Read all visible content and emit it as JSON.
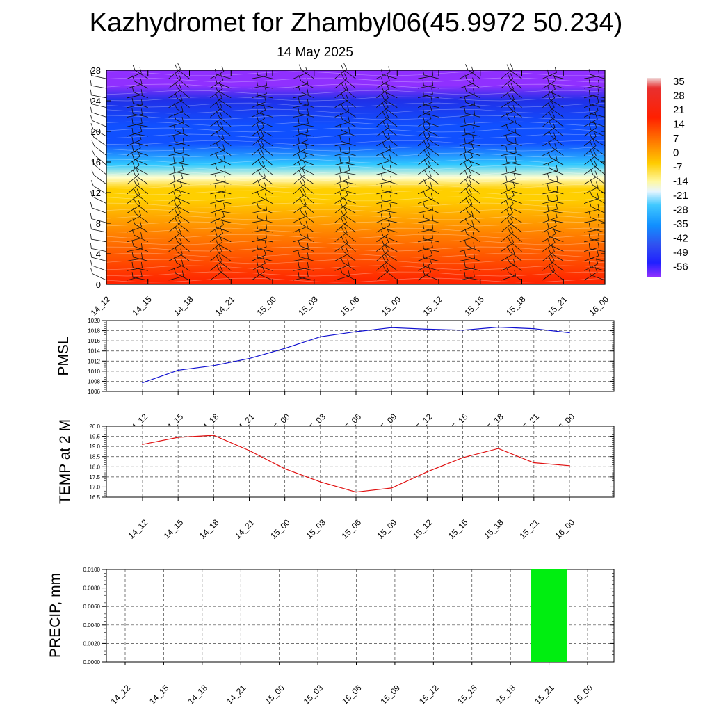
{
  "header": {
    "title": "Kazhydromet for Zhambyl06(45.9972 50.234)",
    "subtitle": "14 May 2025"
  },
  "chart_data": [
    {
      "type": "heatmap",
      "panel": "temperature-height cross section with wind barbs",
      "x": [
        "14_12",
        "14_15",
        "14_18",
        "14_21",
        "15_00",
        "15_03",
        "15_06",
        "15_09",
        "15_12",
        "15_15",
        "15_18",
        "15_21",
        "16_00"
      ],
      "y_ticks": [
        "0",
        "4",
        "8",
        "12",
        "16",
        "20",
        "24",
        "28"
      ],
      "ylim": [
        0,
        28
      ],
      "colorbar": {
        "labels": [
          "35",
          "28",
          "21",
          "14",
          "7",
          "0",
          "-7",
          "-14",
          "-21",
          "-28",
          "-35",
          "-42",
          "-49",
          "-56"
        ],
        "range": [
          -63,
          42
        ]
      },
      "colors": {
        "warm_low": "#ff2000",
        "warm_mid": "#ff7a00",
        "warm_high": "#ffcf00",
        "pale": "#ffffd0",
        "cold_light": "#30c8ff",
        "cold_mid": "#1050ff",
        "cold_deep": "#2030e8",
        "top": "#9030ff"
      }
    },
    {
      "type": "line",
      "ylabel": "PMSL",
      "x": [
        "14_12",
        "14_15",
        "14_18",
        "14_21",
        "15_00",
        "15_03",
        "15_06",
        "15_09",
        "15_12",
        "15_15",
        "15_18",
        "15_21",
        "16_00"
      ],
      "y_ticks": [
        "1006",
        "1008",
        "1010",
        "1012",
        "1014",
        "1016",
        "1018",
        "1020"
      ],
      "ylim": [
        1006,
        1020
      ],
      "series": [
        {
          "values": [
            1007.7,
            1010.2,
            1011.1,
            1012.5,
            1014.5,
            1016.8,
            1017.8,
            1018.6,
            1018.3,
            1018.1,
            1018.7,
            1018.4,
            1017.6
          ]
        }
      ],
      "color": "#1010d0",
      "grid": true
    },
    {
      "type": "line",
      "ylabel": "TEMP at 2 M",
      "x": [
        "14_12",
        "14_15",
        "14_18",
        "14_21",
        "15_00",
        "15_03",
        "15_06",
        "15_09",
        "15_12",
        "15_15",
        "15_18",
        "15_21",
        "16_00"
      ],
      "y_ticks": [
        "16.5",
        "17.0",
        "17.5",
        "18.0",
        "18.5",
        "19.0",
        "19.5",
        "20.0"
      ],
      "ylim": [
        16.5,
        20.0
      ],
      "series": [
        {
          "values": [
            19.1,
            19.45,
            19.55,
            18.8,
            17.9,
            17.25,
            16.75,
            16.95,
            17.75,
            18.45,
            18.9,
            18.2,
            18.05
          ]
        }
      ],
      "color": "#e01010",
      "grid": true
    },
    {
      "type": "bar",
      "ylabel": "PRECIP, mm",
      "x": [
        "14_12",
        "14_15",
        "14_18",
        "14_21",
        "15_00",
        "15_03",
        "15_06",
        "15_09",
        "15_12",
        "15_15",
        "15_18",
        "15_21",
        "16_00"
      ],
      "y_ticks": [
        "0.0000",
        "0.0020",
        "0.0040",
        "0.0060",
        "0.0080",
        "0.0100"
      ],
      "ylim": [
        0,
        0.01
      ],
      "values": [
        0,
        0,
        0,
        0,
        0,
        0,
        0,
        0,
        0,
        0,
        0,
        0.01,
        0
      ],
      "color": "#00ee10",
      "grid": true
    }
  ]
}
